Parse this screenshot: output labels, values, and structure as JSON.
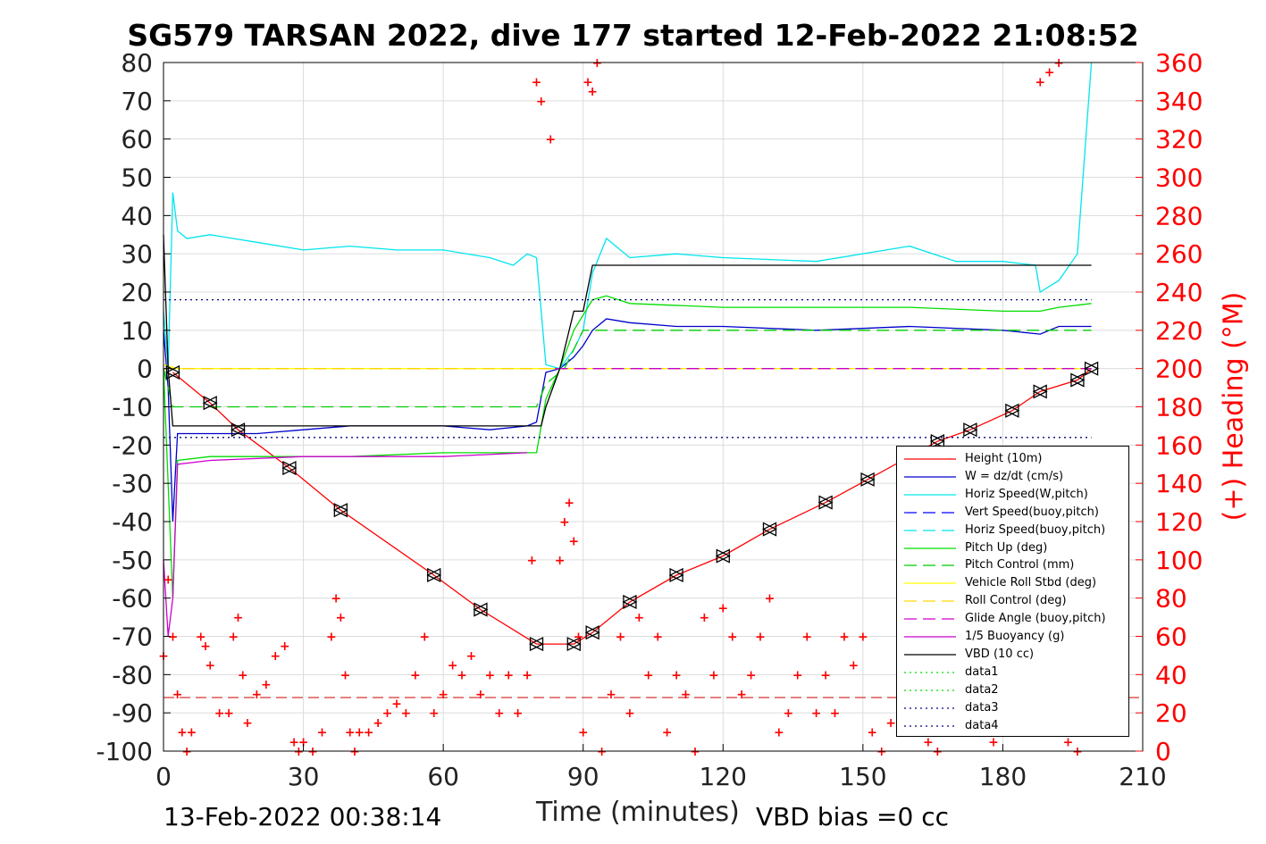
{
  "title": "SG579 TARSAN 2022, dive 177 started 12-Feb-2022 21:08:52",
  "footer_time": "13-Feb-2022 00:38:14",
  "footer_bias": "VBD bias =0 cc",
  "chart_data": {
    "type": "line",
    "title": "SG579 TARSAN 2022, dive 177 started 12-Feb-2022 21:08:52",
    "xlabel": "Time (minutes)",
    "ylabel": "",
    "y2label": "(+) Heading (°M)",
    "xlim": [
      0,
      210
    ],
    "ylim": [
      -100,
      80
    ],
    "y2lim": [
      0,
      360
    ],
    "xticks": [
      0,
      30,
      60,
      90,
      120,
      150,
      180,
      210
    ],
    "yticks": [
      -100,
      -90,
      -80,
      -70,
      -60,
      -50,
      -40,
      -30,
      -20,
      -10,
      0,
      10,
      20,
      30,
      40,
      50,
      60,
      70,
      80
    ],
    "y2ticks": [
      0,
      20,
      40,
      60,
      80,
      100,
      120,
      140,
      160,
      180,
      200,
      220,
      240,
      260,
      280,
      300,
      320,
      340,
      360
    ],
    "grid": true,
    "legend_position": "bottom-right",
    "series": [
      {
        "name": "Height (10m)",
        "color": "#ff0000",
        "style": "solid",
        "x": [
          2,
          10,
          16,
          27,
          38,
          58,
          68,
          80,
          88,
          92,
          100,
          110,
          120,
          130,
          142,
          151,
          166,
          173,
          182,
          188,
          196,
          199
        ],
        "y": [
          -1,
          -9,
          -16,
          -26,
          -37,
          -54,
          -63,
          -72,
          -72,
          -69,
          -61,
          -54,
          -49,
          -42,
          -35,
          -29,
          -19,
          -16,
          -11,
          -6,
          -3,
          0
        ]
      },
      {
        "name": "W = dz/dt (cm/s)",
        "color": "#0000cc",
        "style": "solid",
        "x": [
          0,
          1,
          2,
          3,
          10,
          20,
          30,
          40,
          50,
          60,
          70,
          78,
          80,
          82,
          85,
          88,
          90,
          92,
          95,
          100,
          110,
          120,
          140,
          160,
          180,
          188,
          192,
          199
        ],
        "y": [
          10,
          -5,
          -40,
          -17,
          -17,
          -17,
          -16,
          -15,
          -15,
          -15,
          -16,
          -15,
          -14,
          -1,
          0,
          3,
          6,
          10,
          13,
          12,
          11,
          11,
          10,
          11,
          10,
          9,
          11,
          11
        ]
      },
      {
        "name": "Horiz Speed(W,pitch)",
        "color": "#00e5ee",
        "style": "solid",
        "x": [
          0,
          1,
          2,
          3,
          5,
          10,
          20,
          30,
          40,
          50,
          60,
          70,
          75,
          78,
          80,
          82,
          85,
          88,
          90,
          92,
          95,
          100,
          110,
          120,
          140,
          160,
          170,
          180,
          187,
          188,
          192,
          196,
          199
        ],
        "y": [
          15,
          0,
          46,
          36,
          34,
          35,
          33,
          31,
          32,
          31,
          31,
          29,
          27,
          30,
          29,
          1,
          0,
          5,
          10,
          25,
          34,
          29,
          30,
          29,
          28,
          32,
          28,
          28,
          27,
          20,
          23,
          30,
          80
        ]
      },
      {
        "name": "Vert Speed(buoy,pitch)",
        "color": "#0000ff",
        "style": "dashed",
        "x": [
          0,
          199
        ],
        "y": [
          0,
          0
        ]
      },
      {
        "name": "Horiz Speed(buoy,pitch)",
        "color": "#00e5ee",
        "style": "dashed",
        "x": [
          0,
          199
        ],
        "y": [
          0,
          0
        ]
      },
      {
        "name": "Pitch Up (deg)",
        "color": "#00dd00",
        "style": "solid",
        "x": [
          0,
          1,
          2,
          3,
          10,
          20,
          40,
          60,
          70,
          78,
          80,
          82,
          85,
          88,
          90,
          92,
          95,
          100,
          120,
          140,
          160,
          180,
          188,
          192,
          199
        ],
        "y": [
          0,
          -30,
          -60,
          -24,
          -23,
          -23,
          -23,
          -22,
          -22,
          -22,
          -22,
          -8,
          0,
          10,
          14,
          18,
          19,
          17,
          16,
          16,
          16,
          15,
          15,
          16,
          17
        ]
      },
      {
        "name": "Pitch Control (mm)",
        "color": "#00cc00",
        "style": "dashed",
        "x": [
          0,
          2,
          80,
          82,
          86,
          90,
          199
        ],
        "y": [
          0,
          -10,
          -10,
          -4,
          0,
          10,
          10
        ]
      },
      {
        "name": "Vehicle Roll Stbd (deg)",
        "color": "#ffff00",
        "style": "solid",
        "x": [
          0,
          3,
          20,
          40,
          60,
          80,
          82,
          90,
          120,
          150,
          180,
          199
        ],
        "y": [
          1,
          0,
          0,
          0,
          0,
          0,
          0,
          0,
          0,
          0,
          0,
          0
        ]
      },
      {
        "name": "Roll Control (deg)",
        "color": "#ffd700",
        "style": "dashed",
        "x": [
          0,
          82,
          84,
          199
        ],
        "y": [
          0,
          0,
          0,
          0
        ]
      },
      {
        "name": "Glide Angle (buoy,pitch)",
        "color": "#cc00cc",
        "style": "dashed",
        "x": [
          84,
          199
        ],
        "y": [
          0,
          0
        ]
      },
      {
        "name": "1/5 Buoyancy (g)",
        "color": "#cc00cc",
        "style": "solid",
        "x": [
          0,
          1,
          2,
          3,
          10,
          30,
          60,
          78
        ],
        "y": [
          -50,
          -70,
          -60,
          -25,
          -24,
          -23,
          -23,
          -22
        ]
      },
      {
        "name": "VBD (10 cc)",
        "color": "#000000",
        "style": "solid",
        "x": [
          0,
          1,
          2,
          78,
          80,
          81,
          82,
          85,
          88,
          90,
          92,
          199
        ],
        "y": [
          35,
          0,
          -15,
          -15,
          -15,
          -15,
          -10,
          0,
          15,
          15,
          27,
          27
        ]
      },
      {
        "name": "data1",
        "color": "#00dd00",
        "style": "dotted",
        "x": [],
        "y": []
      },
      {
        "name": "data2",
        "color": "#00dd00",
        "style": "dotted",
        "x": [],
        "y": []
      },
      {
        "name": "data3",
        "color": "#000080",
        "style": "dotted",
        "x": [
          0,
          199
        ],
        "y": [
          -18,
          -18
        ]
      },
      {
        "name": "data4",
        "color": "#000080",
        "style": "dotted",
        "x": [
          0,
          199
        ],
        "y": [
          18,
          18
        ]
      }
    ],
    "heading_series": {
      "name": "Heading (°M)",
      "axis": "right",
      "color": "#ff0000",
      "marker": "+",
      "x": [
        0,
        1,
        2,
        3,
        4,
        5,
        6,
        8,
        9,
        10,
        12,
        14,
        15,
        16,
        17,
        18,
        20,
        22,
        24,
        26,
        28,
        29,
        30,
        32,
        34,
        36,
        37,
        38,
        39,
        40,
        41,
        42,
        44,
        46,
        48,
        50,
        52,
        54,
        56,
        58,
        60,
        62,
        64,
        66,
        68,
        70,
        72,
        74,
        76,
        78,
        79,
        80,
        81,
        83,
        85,
        86,
        87,
        88,
        89,
        90,
        91,
        92,
        93,
        94,
        96,
        98,
        100,
        102,
        104,
        106,
        108,
        110,
        112,
        114,
        116,
        118,
        120,
        122,
        124,
        126,
        128,
        130,
        132,
        134,
        136,
        138,
        140,
        142,
        144,
        146,
        148,
        150,
        152,
        154,
        156,
        158,
        160,
        162,
        164,
        166,
        168,
        170,
        172,
        174,
        176,
        178,
        180,
        182,
        184,
        186,
        188,
        190,
        192,
        194,
        196,
        198
      ],
      "y": [
        50,
        90,
        60,
        30,
        10,
        0,
        10,
        60,
        55,
        45,
        20,
        20,
        60,
        70,
        40,
        15,
        30,
        35,
        50,
        55,
        5,
        0,
        5,
        0,
        10,
        60,
        80,
        70,
        40,
        10,
        0,
        10,
        10,
        15,
        20,
        25,
        20,
        40,
        60,
        20,
        30,
        45,
        40,
        50,
        30,
        40,
        20,
        40,
        20,
        40,
        100,
        350,
        340,
        320,
        100,
        120,
        130,
        110,
        60,
        10,
        350,
        345,
        360,
        0,
        30,
        60,
        20,
        70,
        40,
        60,
        10,
        40,
        30,
        0,
        70,
        40,
        75,
        60,
        30,
        40,
        60,
        80,
        10,
        20,
        40,
        60,
        20,
        40,
        20,
        60,
        45,
        60,
        10,
        0,
        15,
        20,
        35,
        10,
        5,
        0,
        10,
        30,
        25,
        15,
        10,
        5,
        10,
        15,
        10,
        20,
        350,
        355,
        360,
        5,
        0,
        10
      ]
    },
    "reference_line": {
      "color": "#cc0000",
      "style": "dashed",
      "y": -86
    }
  }
}
